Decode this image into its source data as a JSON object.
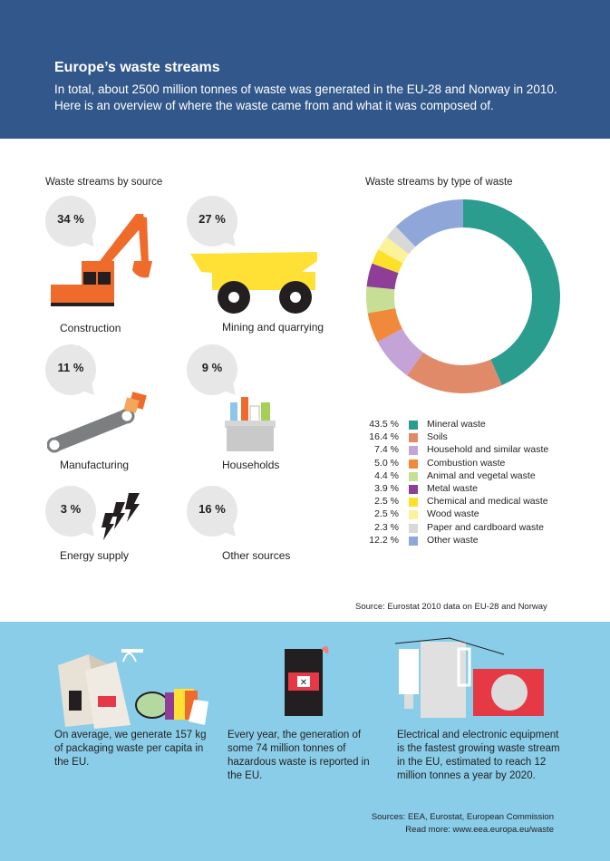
{
  "header": {
    "title": "Europe’s waste streams",
    "subtitle": "In total, about 2500 million tonnes of waste was generated in the EU-28 and Norway in 2010. Here is an overview of where the waste came from and what it was composed of."
  },
  "by_source": {
    "title": "Waste streams by source",
    "items": [
      {
        "pct": "34 %",
        "label": "Construction"
      },
      {
        "pct": "27 %",
        "label": "Mining and quarrying"
      },
      {
        "pct": "11 %",
        "label": "Manufacturing"
      },
      {
        "pct": "9 %",
        "label": "Households"
      },
      {
        "pct": "3 %",
        "label": "Energy supply"
      },
      {
        "pct": "16 %",
        "label": "Other sources"
      }
    ]
  },
  "chart_data": {
    "type": "pie",
    "title": "Waste streams by type of waste",
    "categories": [
      "Mineral waste",
      "Soils",
      "Household and similar waste",
      "Combustion waste",
      "Animal and vegetal waste",
      "Metal waste",
      "Chemical and medical waste",
      "Wood waste",
      "Paper and cardboard waste",
      "Other waste"
    ],
    "values": [
      43.5,
      16.4,
      7.4,
      5.0,
      4.4,
      3.9,
      2.5,
      2.5,
      2.3,
      12.2
    ],
    "labels": [
      "43.5 %",
      "16.4 %",
      "7.4 %",
      "5.0 %",
      "4.4 %",
      "3.9 %",
      "2.5 %",
      "2.5 %",
      "2.3 %",
      "12.2 %"
    ],
    "colors": [
      "#2a9d8f",
      "#e08a6a",
      "#c4a3d6",
      "#f08a3a",
      "#c6df94",
      "#8e3e98",
      "#fde02a",
      "#fbf29a",
      "#d8d8d8",
      "#8ea6d8"
    ],
    "donut": true,
    "legend_position": "below"
  },
  "source_note": "Source: Eurostat 2010 data on EU-28 and Norway",
  "facts": [
    "On average, we generate 157 kg of packaging waste per capita in the EU.",
    "Every year, the generation of some 74 million tonnes of hazardous waste is reported in the EU.",
    "Electrical and electronic equipment is the fastest growing waste stream in the EU, estimated to reach 12 million tonnes a year by 2020."
  ],
  "footer": {
    "sources": "Sources: EEA, Eurostat, European Commission",
    "read_more": "Read more: www.eea.europa.eu/waste"
  }
}
